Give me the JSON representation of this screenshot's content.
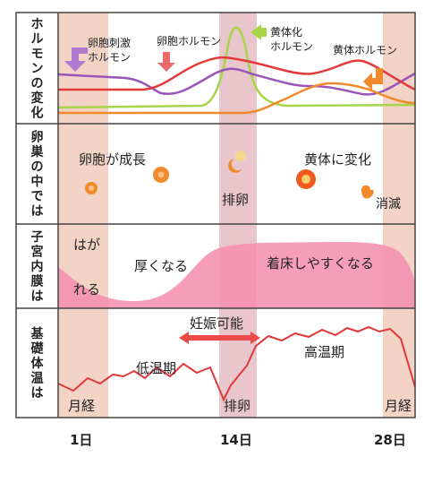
{
  "rows": {
    "hormone": {
      "title": [
        "ホ",
        "ル",
        "モ",
        "ン",
        "の",
        "変",
        "化"
      ]
    },
    "ovary": {
      "title": [
        "卵",
        "巣",
        "の",
        "中",
        "で",
        "は"
      ]
    },
    "uterus": {
      "title": [
        "子",
        "宮",
        "内",
        "膜",
        "は"
      ]
    },
    "temp": {
      "title": [
        "基",
        "礎",
        "体",
        "温",
        "は"
      ]
    }
  },
  "hormone": {
    "fsh_label_1": "卵胞刺激",
    "fsh_label_2": "ホルモン",
    "estrogen_label": "卵胞ホルモン",
    "lh_label_1": "黄体化",
    "lh_label_2": "ホルモン",
    "progesterone_label": "黄体ホルモン"
  },
  "ovary": {
    "growth": "卵胞が成長",
    "ovulation": "排卵",
    "corpus_luteum": "黄体に変化",
    "disappear": "消滅"
  },
  "uterus": {
    "shed_1": "はが",
    "shed_2": "れる",
    "thicken": "厚くなる",
    "implant": "着床しやすくなる"
  },
  "temp": {
    "period_start": "月経",
    "low_phase": "低温期",
    "ovulation": "排卵",
    "fertile": "妊娠可能",
    "high_phase": "高温期",
    "period_end": "月経"
  },
  "axis": {
    "ticks": [
      "1日",
      "14日",
      "28日"
    ]
  },
  "colors": {
    "fsh": "#9a55b8",
    "estrogen": "#e23a3a",
    "lh": "#a8d44a",
    "progesterone": "#f08a2a",
    "band": "#f2d0c0",
    "ovulation_band": "#e5c0c8",
    "endometrium": "#f07aa0",
    "temperature": "#e0383a"
  }
}
